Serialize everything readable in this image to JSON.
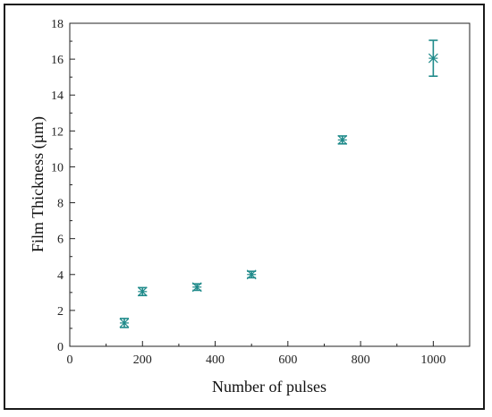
{
  "chart_data": {
    "type": "scatter",
    "title": "",
    "xlabel": "Number of pulses",
    "ylabel": "Film Thickness (µm)",
    "xlim": [
      0,
      1100
    ],
    "ylim": [
      0,
      18
    ],
    "xticks": [
      0,
      200,
      400,
      600,
      800,
      1000
    ],
    "yticks": [
      0,
      2,
      4,
      6,
      8,
      10,
      12,
      14,
      16,
      18
    ],
    "grid": false,
    "series": [
      {
        "marker": "asterisk",
        "color": "#1f8a8a",
        "points": [
          {
            "x": 150,
            "y": 1.3,
            "err": 0.25
          },
          {
            "x": 200,
            "y": 3.05,
            "err": 0.22
          },
          {
            "x": 350,
            "y": 3.3,
            "err": 0.18
          },
          {
            "x": 500,
            "y": 4.0,
            "err": 0.18
          },
          {
            "x": 750,
            "y": 11.5,
            "err": 0.22
          },
          {
            "x": 1000,
            "y": 16.05,
            "err": 1.0
          }
        ]
      }
    ]
  }
}
